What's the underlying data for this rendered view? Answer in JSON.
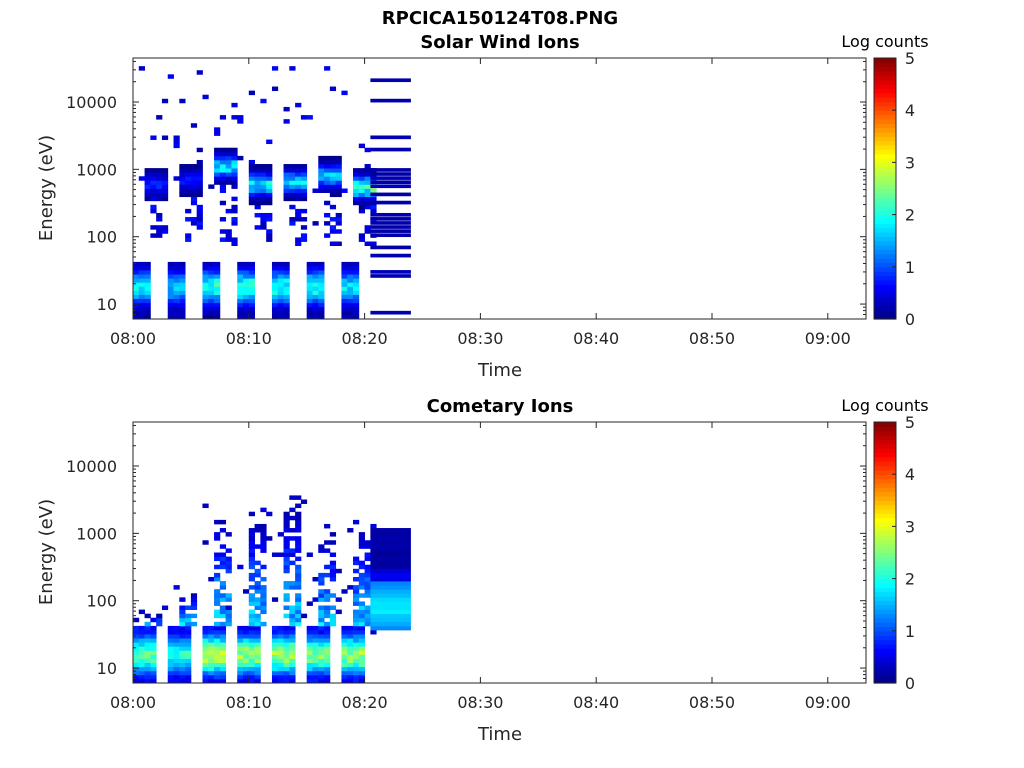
{
  "figure": {
    "title": "RPCICA150124T08.PNG"
  },
  "chart_data": [
    {
      "type": "heatmap",
      "title": "Solar Wind Ions",
      "xlabel": "Time",
      "ylabel": "Energy (eV)",
      "x_ticks": [
        "08:00",
        "08:10",
        "08:20",
        "08:30",
        "08:40",
        "08:50",
        "09:00"
      ],
      "x_range_minutes": [
        0,
        63.3
      ],
      "y_ticks": [
        "10",
        "100",
        "1000",
        "10000"
      ],
      "y_scale": "log",
      "y_range": [
        6,
        45000
      ],
      "colorbar": {
        "label": "Log counts",
        "ticks": [
          "0",
          "1",
          "2",
          "3",
          "4",
          "5"
        ],
        "range": [
          0,
          5
        ],
        "colormap": "jet"
      },
      "data_extent_minutes": [
        0,
        24
      ],
      "sweeps": [
        {
          "start": 0.0,
          "low_peak": 2.1,
          "mid_energy": 600,
          "mid_peak": 0.9
        },
        {
          "start": 3.0,
          "low_peak": 1.8,
          "mid_energy": 700,
          "mid_peak": 0.8
        },
        {
          "start": 6.0,
          "low_peak": 2.4,
          "mid_energy": 1100,
          "mid_peak": 2.2
        },
        {
          "start": 9.0,
          "low_peak": 2.5,
          "mid_energy": 600,
          "mid_peak": 2.3
        },
        {
          "start": 12.0,
          "low_peak": 2.3,
          "mid_energy": 650,
          "mid_peak": 2.1
        },
        {
          "start": 15.0,
          "low_peak": 2.4,
          "mid_energy": 800,
          "mid_peak": 1.9
        },
        {
          "start": 18.0,
          "low_peak": 2.0,
          "mid_energy": 550,
          "mid_peak": 2.8
        }
      ],
      "tail_bands_eV": [
        20000,
        10000,
        3000,
        2000,
        1000,
        850,
        700,
        600,
        520,
        400,
        300,
        200,
        180,
        160,
        140,
        120,
        100,
        70,
        50,
        30,
        27,
        7
      ]
    },
    {
      "type": "heatmap",
      "title": "Cometary Ions",
      "xlabel": "Time",
      "ylabel": "Energy (eV)",
      "x_ticks": [
        "08:00",
        "08:10",
        "08:20",
        "08:30",
        "08:40",
        "08:50",
        "09:00"
      ],
      "x_range_minutes": [
        0,
        63.3
      ],
      "y_ticks": [
        "10",
        "100",
        "1000",
        "10000"
      ],
      "y_scale": "log",
      "y_range": [
        6,
        45000
      ],
      "colorbar": {
        "label": "Log counts",
        "ticks": [
          "0",
          "1",
          "2",
          "3",
          "4",
          "5"
        ],
        "range": [
          0,
          5
        ],
        "colormap": "jet"
      },
      "data_extent_minutes": [
        0,
        24
      ],
      "sweeps": [
        {
          "start": 0.0,
          "low_peak": 2.7,
          "top_energy": 60
        },
        {
          "start": 3.0,
          "low_peak": 2.3,
          "top_energy": 120
        },
        {
          "start": 6.0,
          "low_peak": 3.3,
          "top_energy": 1500
        },
        {
          "start": 9.0,
          "low_peak": 3.0,
          "top_energy": 1400
        },
        {
          "start": 12.0,
          "low_peak": 3.0,
          "top_energy": 2000
        },
        {
          "start": 15.0,
          "low_peak": 2.8,
          "top_energy": 800
        },
        {
          "start": 18.0,
          "low_peak": 3.0,
          "top_energy": 1000
        }
      ],
      "tail_range_eV": [
        35,
        1200
      ]
    }
  ]
}
